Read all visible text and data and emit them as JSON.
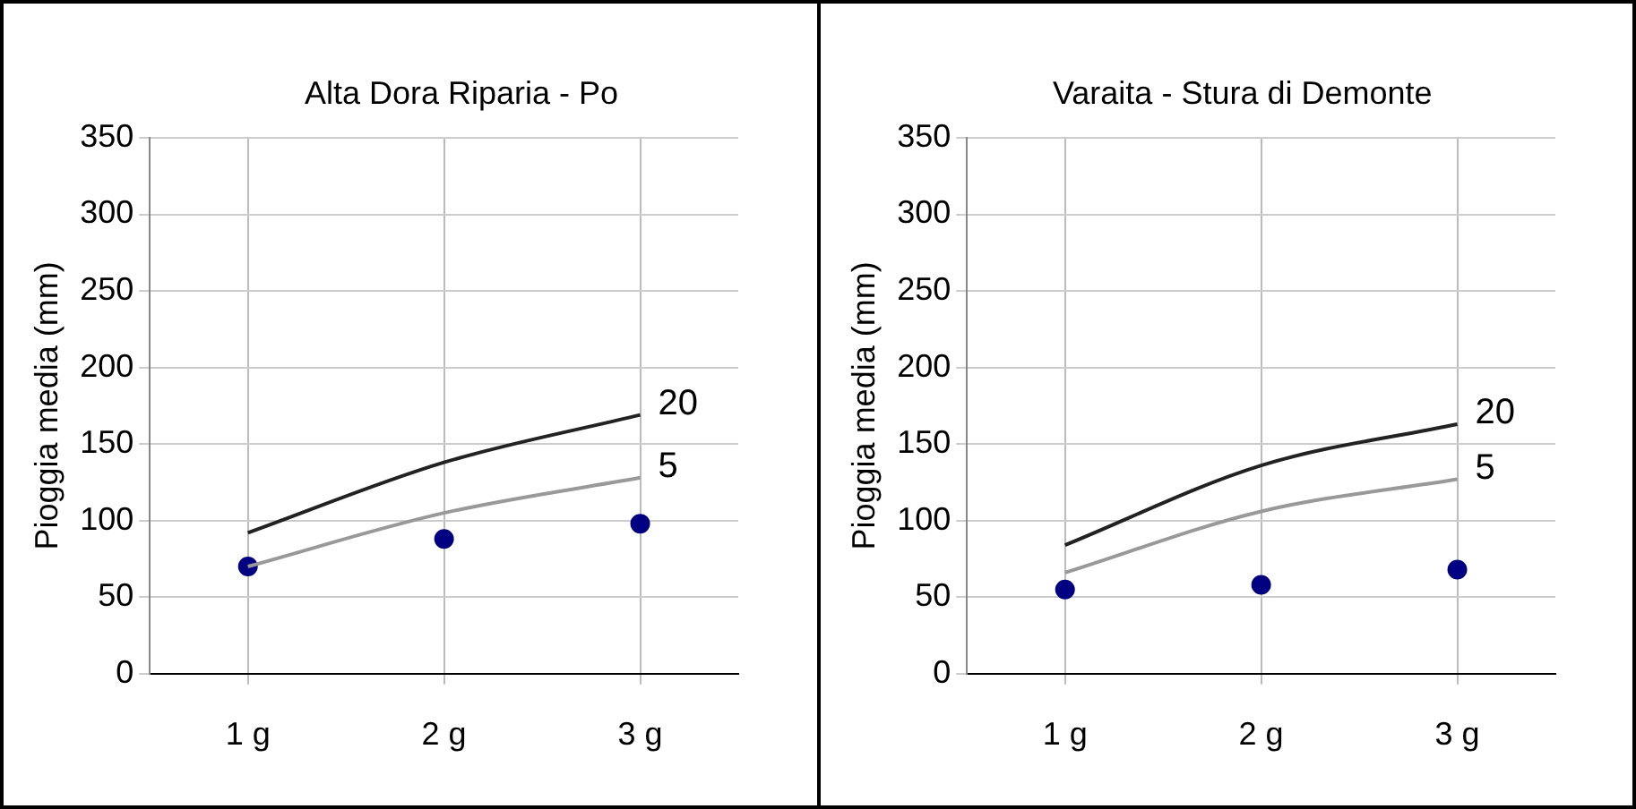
{
  "chart_data": [
    {
      "type": "line",
      "title": "Alta Dora Riparia - Po",
      "ylabel": "Pioggia media (mm)",
      "categories": [
        "1 g",
        "2 g",
        "3 g"
      ],
      "ylim": [
        0,
        350
      ],
      "yticks": [
        0,
        50,
        100,
        150,
        200,
        250,
        300,
        350
      ],
      "grid": true,
      "legend": false,
      "series": [
        {
          "name": "20",
          "color": "#222222",
          "values": [
            92,
            138,
            169
          ]
        },
        {
          "name": "5",
          "color": "#999999",
          "values": [
            70,
            105,
            128
          ]
        },
        {
          "type": "scatter",
          "color": "#000080",
          "values": [
            70,
            88,
            98
          ],
          "marker": "circle"
        }
      ]
    },
    {
      "type": "line",
      "title": "Varaita - Stura di Demonte",
      "ylabel": "Pioggia media (mm)",
      "categories": [
        "1 g",
        "2 g",
        "3 g"
      ],
      "ylim": [
        0,
        350
      ],
      "yticks": [
        0,
        50,
        100,
        150,
        200,
        250,
        300,
        350
      ],
      "grid": true,
      "legend": false,
      "series": [
        {
          "name": "20",
          "color": "#222222",
          "values": [
            84,
            136,
            163
          ]
        },
        {
          "name": "5",
          "color": "#999999",
          "values": [
            66,
            106,
            127
          ]
        },
        {
          "type": "scatter",
          "color": "#000080",
          "values": [
            55,
            58,
            68
          ],
          "marker": "circle"
        }
      ]
    }
  ]
}
